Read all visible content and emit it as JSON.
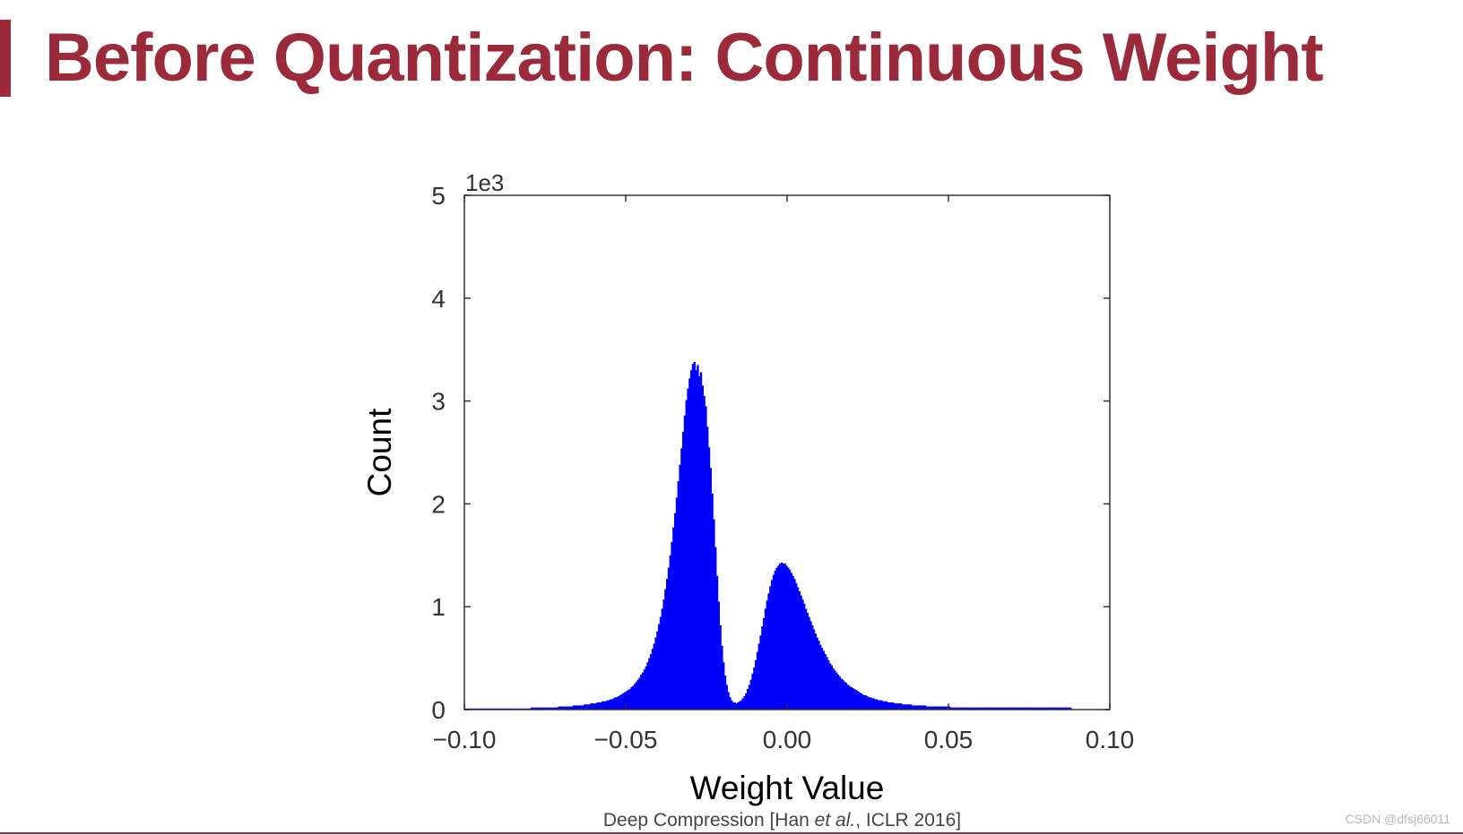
{
  "slide": {
    "title": "Before Quantization: Continuous Weight",
    "caption_pre": "Deep Compression [Han ",
    "caption_em": "et al.",
    "caption_post": ", ICLR 2016]",
    "watermark": "CSDN @dfsj66011"
  },
  "colors": {
    "title": "#9b2a3a",
    "bars": "#0000ff"
  },
  "chart_data": {
    "type": "bar",
    "xlabel": "Weight Value",
    "ylabel": "Count",
    "y_multiplier_label": "1e3",
    "xlim": [
      -0.1,
      0.1
    ],
    "ylim": [
      0,
      5
    ],
    "xticks": [
      -0.1,
      -0.05,
      0.0,
      0.05,
      0.1
    ],
    "xtick_labels": [
      "−0.10",
      "−0.05",
      "0.00",
      "0.05",
      "0.10"
    ],
    "yticks": [
      0,
      1,
      2,
      3,
      4,
      5
    ],
    "ytick_labels": [
      "0",
      "1",
      "2",
      "3",
      "4",
      "5"
    ],
    "grid": false,
    "bin_width": 0.0005,
    "bin_start": -0.1,
    "values": [
      0.01,
      0.01,
      0.01,
      0.01,
      0.01,
      0.01,
      0.01,
      0.01,
      0.01,
      0.01,
      0.01,
      0.01,
      0.01,
      0.01,
      0.01,
      0.01,
      0.01,
      0.01,
      0.01,
      0.01,
      0.01,
      0.01,
      0.01,
      0.01,
      0.01,
      0.01,
      0.01,
      0.01,
      0.01,
      0.01,
      0.01,
      0.01,
      0.01,
      0.01,
      0.01,
      0.01,
      0.01,
      0.01,
      0.01,
      0.01,
      0.01,
      0.02,
      0.02,
      0.02,
      0.02,
      0.02,
      0.02,
      0.02,
      0.02,
      0.02,
      0.02,
      0.02,
      0.02,
      0.02,
      0.02,
      0.02,
      0.02,
      0.02,
      0.03,
      0.03,
      0.03,
      0.03,
      0.03,
      0.03,
      0.03,
      0.03,
      0.03,
      0.04,
      0.04,
      0.04,
      0.04,
      0.04,
      0.04,
      0.04,
      0.05,
      0.05,
      0.05,
      0.05,
      0.06,
      0.06,
      0.06,
      0.06,
      0.07,
      0.07,
      0.07,
      0.08,
      0.08,
      0.08,
      0.09,
      0.09,
      0.1,
      0.1,
      0.11,
      0.12,
      0.12,
      0.13,
      0.14,
      0.15,
      0.16,
      0.17,
      0.18,
      0.19,
      0.2,
      0.22,
      0.23,
      0.25,
      0.27,
      0.29,
      0.31,
      0.34,
      0.36,
      0.39,
      0.42,
      0.46,
      0.5,
      0.54,
      0.59,
      0.64,
      0.7,
      0.76,
      0.83,
      0.9,
      0.98,
      1.07,
      1.17,
      1.27,
      1.38,
      1.5,
      1.63,
      1.77,
      1.91,
      2.06,
      2.22,
      2.38,
      2.54,
      2.7,
      2.86,
      3.01,
      3.12,
      3.22,
      3.3,
      3.36,
      3.38,
      3.3,
      3.35,
      3.24,
      3.28,
      3.15,
      3.05,
      2.95,
      2.75,
      2.55,
      2.35,
      2.1,
      1.85,
      1.58,
      1.3,
      1.05,
      0.82,
      0.62,
      0.46,
      0.33,
      0.24,
      0.17,
      0.12,
      0.09,
      0.07,
      0.07,
      0.06,
      0.07,
      0.08,
      0.09,
      0.11,
      0.13,
      0.16,
      0.2,
      0.24,
      0.29,
      0.35,
      0.41,
      0.48,
      0.56,
      0.64,
      0.72,
      0.81,
      0.89,
      0.98,
      1.06,
      1.13,
      1.2,
      1.26,
      1.31,
      1.35,
      1.38,
      1.4,
      1.42,
      1.43,
      1.42,
      1.42,
      1.4,
      1.38,
      1.36,
      1.33,
      1.3,
      1.27,
      1.23,
      1.19,
      1.15,
      1.11,
      1.07,
      1.03,
      0.98,
      0.94,
      0.9,
      0.86,
      0.82,
      0.78,
      0.74,
      0.7,
      0.67,
      0.63,
      0.6,
      0.57,
      0.54,
      0.51,
      0.48,
      0.45,
      0.43,
      0.4,
      0.38,
      0.36,
      0.34,
      0.32,
      0.3,
      0.29,
      0.27,
      0.26,
      0.24,
      0.23,
      0.22,
      0.21,
      0.2,
      0.19,
      0.18,
      0.17,
      0.16,
      0.15,
      0.14,
      0.14,
      0.13,
      0.12,
      0.12,
      0.11,
      0.11,
      0.1,
      0.1,
      0.09,
      0.09,
      0.09,
      0.08,
      0.08,
      0.08,
      0.07,
      0.07,
      0.07,
      0.07,
      0.06,
      0.06,
      0.06,
      0.06,
      0.06,
      0.05,
      0.05,
      0.05,
      0.05,
      0.05,
      0.05,
      0.04,
      0.04,
      0.04,
      0.04,
      0.04,
      0.04,
      0.04,
      0.04,
      0.04,
      0.03,
      0.03,
      0.03,
      0.03,
      0.03,
      0.03,
      0.03,
      0.03,
      0.03,
      0.03,
      0.03,
      0.03,
      0.03,
      0.03,
      0.03,
      0.02,
      0.02,
      0.02,
      0.02,
      0.02,
      0.02,
      0.02,
      0.02,
      0.02,
      0.02,
      0.02,
      0.02,
      0.02,
      0.02,
      0.02,
      0.02,
      0.02,
      0.02,
      0.02,
      0.02,
      0.02,
      0.02,
      0.02,
      0.02,
      0.02,
      0.02,
      0.02,
      0.02,
      0.02,
      0.02,
      0.02,
      0.02,
      0.02,
      0.02,
      0.02,
      0.02,
      0.02,
      0.02,
      0.02,
      0.02,
      0.02,
      0.02,
      0.02,
      0.02,
      0.02,
      0.02,
      0.02,
      0.02,
      0.02,
      0.02,
      0.02,
      0.02,
      0.02,
      0.02,
      0.02,
      0.02,
      0.02,
      0.02,
      0.02,
      0.02,
      0.02,
      0.02,
      0.02,
      0.02,
      0.02,
      0.02,
      0.02,
      0.02,
      0.02,
      0.02,
      0.02,
      0.02,
      0.02,
      0.02,
      0.02
    ]
  }
}
